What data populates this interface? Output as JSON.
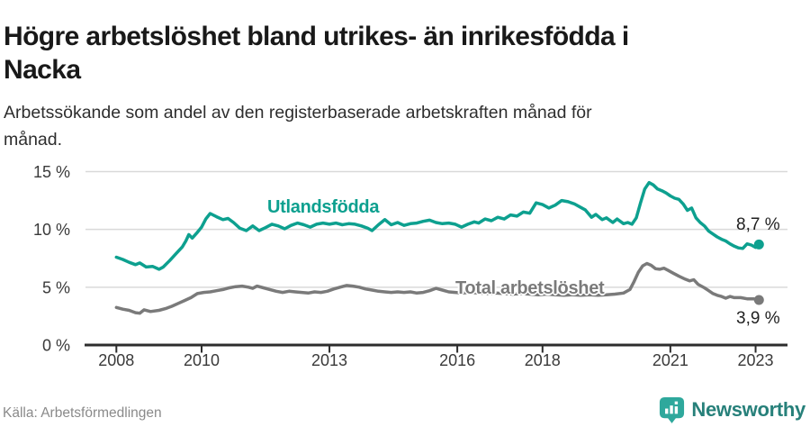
{
  "header": {
    "title": "Högre arbetslöshet bland utrikes- än inrikesfödda i Nacka",
    "title_lines": [
      "Högre arbetslöshet bland utrikes- än inrikesfödda i",
      "Nacka"
    ],
    "subtitle": "Arbetssökande som andel av den registerbaserade arbetskraften månad för månad.",
    "subtitle_lines": [
      "Arbetssökande som andel av den registerbaserade arbetskraften månad för",
      "månad."
    ]
  },
  "chart_data": {
    "type": "line",
    "title": "Högre arbetslöshet bland utrikes- än inrikesfödda i Nacka",
    "subtitle": "Arbetssökande som andel av den registerbaserade arbetskraften månad för månad.",
    "xlabel": "",
    "ylabel": "",
    "ylim": [
      0,
      15.5
    ],
    "xlim": [
      2007.55,
      2023.8
    ],
    "grid": "horizontal",
    "y_ticks": [
      {
        "label": "0 %",
        "value": 0
      },
      {
        "label": "5 %",
        "value": 5
      },
      {
        "label": "10 %",
        "value": 10
      },
      {
        "label": "15 %",
        "value": 15
      }
    ],
    "x_ticks": [
      {
        "label": "2008",
        "year": 2008
      },
      {
        "label": "2010",
        "year": 2010
      },
      {
        "label": "2013",
        "year": 2013
      },
      {
        "label": "2016",
        "year": 2016
      },
      {
        "label": "2018",
        "year": 2018
      },
      {
        "label": "2021",
        "year": 2021
      },
      {
        "label": "2023",
        "year": 2023
      }
    ],
    "series": [
      {
        "name": "Utlandsfödda",
        "color": "#0da08f",
        "end_label": "8,7 %",
        "end_value": 8.7,
        "points": [
          [
            2008.0,
            7.6
          ],
          [
            2008.15,
            7.4
          ],
          [
            2008.3,
            7.15
          ],
          [
            2008.45,
            6.95
          ],
          [
            2008.55,
            7.1
          ],
          [
            2008.7,
            6.75
          ],
          [
            2008.85,
            6.8
          ],
          [
            2009.0,
            6.55
          ],
          [
            2009.1,
            6.75
          ],
          [
            2009.25,
            7.3
          ],
          [
            2009.4,
            7.9
          ],
          [
            2009.55,
            8.5
          ],
          [
            2009.63,
            9.0
          ],
          [
            2009.7,
            9.55
          ],
          [
            2009.78,
            9.25
          ],
          [
            2009.9,
            9.75
          ],
          [
            2010.0,
            10.2
          ],
          [
            2010.1,
            10.9
          ],
          [
            2010.2,
            11.38
          ],
          [
            2010.35,
            11.1
          ],
          [
            2010.5,
            10.85
          ],
          [
            2010.62,
            10.95
          ],
          [
            2010.75,
            10.6
          ],
          [
            2010.9,
            10.1
          ],
          [
            2011.05,
            9.9
          ],
          [
            2011.2,
            10.3
          ],
          [
            2011.35,
            9.9
          ],
          [
            2011.5,
            10.15
          ],
          [
            2011.65,
            10.45
          ],
          [
            2011.8,
            10.3
          ],
          [
            2011.95,
            10.05
          ],
          [
            2012.1,
            10.35
          ],
          [
            2012.25,
            10.55
          ],
          [
            2012.4,
            10.4
          ],
          [
            2012.55,
            10.2
          ],
          [
            2012.7,
            10.45
          ],
          [
            2012.85,
            10.55
          ],
          [
            2013.0,
            10.45
          ],
          [
            2013.15,
            10.55
          ],
          [
            2013.3,
            10.4
          ],
          [
            2013.45,
            10.5
          ],
          [
            2013.6,
            10.45
          ],
          [
            2013.75,
            10.3
          ],
          [
            2013.9,
            10.1
          ],
          [
            2014.0,
            9.9
          ],
          [
            2014.15,
            10.4
          ],
          [
            2014.3,
            10.85
          ],
          [
            2014.45,
            10.4
          ],
          [
            2014.6,
            10.6
          ],
          [
            2014.75,
            10.35
          ],
          [
            2014.9,
            10.5
          ],
          [
            2015.05,
            10.55
          ],
          [
            2015.2,
            10.7
          ],
          [
            2015.35,
            10.8
          ],
          [
            2015.5,
            10.6
          ],
          [
            2015.65,
            10.5
          ],
          [
            2015.8,
            10.55
          ],
          [
            2015.95,
            10.45
          ],
          [
            2016.1,
            10.2
          ],
          [
            2016.25,
            10.45
          ],
          [
            2016.4,
            10.65
          ],
          [
            2016.5,
            10.55
          ],
          [
            2016.65,
            10.9
          ],
          [
            2016.8,
            10.75
          ],
          [
            2016.95,
            11.05
          ],
          [
            2017.1,
            10.9
          ],
          [
            2017.25,
            11.25
          ],
          [
            2017.4,
            11.15
          ],
          [
            2017.55,
            11.5
          ],
          [
            2017.7,
            11.4
          ],
          [
            2017.85,
            12.3
          ],
          [
            2018.0,
            12.15
          ],
          [
            2018.15,
            11.85
          ],
          [
            2018.3,
            12.1
          ],
          [
            2018.45,
            12.5
          ],
          [
            2018.6,
            12.4
          ],
          [
            2018.75,
            12.2
          ],
          [
            2018.9,
            11.9
          ],
          [
            2019.0,
            11.7
          ],
          [
            2019.15,
            11.05
          ],
          [
            2019.25,
            11.3
          ],
          [
            2019.4,
            10.85
          ],
          [
            2019.5,
            11.0
          ],
          [
            2019.65,
            10.6
          ],
          [
            2019.75,
            10.9
          ],
          [
            2019.9,
            10.5
          ],
          [
            2020.0,
            10.6
          ],
          [
            2020.1,
            10.45
          ],
          [
            2020.2,
            11.0
          ],
          [
            2020.3,
            12.3
          ],
          [
            2020.4,
            13.5
          ],
          [
            2020.5,
            14.05
          ],
          [
            2020.6,
            13.85
          ],
          [
            2020.7,
            13.5
          ],
          [
            2020.8,
            13.35
          ],
          [
            2020.9,
            13.15
          ],
          [
            2021.0,
            12.9
          ],
          [
            2021.1,
            12.7
          ],
          [
            2021.2,
            12.6
          ],
          [
            2021.3,
            12.2
          ],
          [
            2021.4,
            11.65
          ],
          [
            2021.5,
            11.85
          ],
          [
            2021.6,
            11.0
          ],
          [
            2021.7,
            10.6
          ],
          [
            2021.8,
            10.3
          ],
          [
            2021.9,
            9.85
          ],
          [
            2022.0,
            9.6
          ],
          [
            2022.1,
            9.35
          ],
          [
            2022.2,
            9.15
          ],
          [
            2022.3,
            9.0
          ],
          [
            2022.4,
            8.75
          ],
          [
            2022.5,
            8.55
          ],
          [
            2022.6,
            8.4
          ],
          [
            2022.7,
            8.35
          ],
          [
            2022.8,
            8.75
          ],
          [
            2022.9,
            8.65
          ],
          [
            2023.0,
            8.45
          ],
          [
            2023.08,
            8.7
          ]
        ]
      },
      {
        "name": "Total arbetslöshet",
        "color": "#7a7a7a",
        "end_label": "3,9 %",
        "end_value": 3.9,
        "points": [
          [
            2008.0,
            3.25
          ],
          [
            2008.15,
            3.1
          ],
          [
            2008.3,
            3.0
          ],
          [
            2008.45,
            2.8
          ],
          [
            2008.55,
            2.75
          ],
          [
            2008.65,
            3.05
          ],
          [
            2008.8,
            2.9
          ],
          [
            2009.0,
            3.0
          ],
          [
            2009.15,
            3.15
          ],
          [
            2009.3,
            3.35
          ],
          [
            2009.45,
            3.6
          ],
          [
            2009.6,
            3.85
          ],
          [
            2009.75,
            4.1
          ],
          [
            2009.9,
            4.45
          ],
          [
            2010.05,
            4.55
          ],
          [
            2010.2,
            4.6
          ],
          [
            2010.35,
            4.7
          ],
          [
            2010.5,
            4.8
          ],
          [
            2010.65,
            4.95
          ],
          [
            2010.8,
            5.05
          ],
          [
            2010.95,
            5.1
          ],
          [
            2011.1,
            5.0
          ],
          [
            2011.2,
            4.9
          ],
          [
            2011.3,
            5.1
          ],
          [
            2011.45,
            4.95
          ],
          [
            2011.6,
            4.8
          ],
          [
            2011.75,
            4.65
          ],
          [
            2011.9,
            4.55
          ],
          [
            2012.05,
            4.65
          ],
          [
            2012.2,
            4.6
          ],
          [
            2012.35,
            4.55
          ],
          [
            2012.5,
            4.5
          ],
          [
            2012.65,
            4.6
          ],
          [
            2012.8,
            4.55
          ],
          [
            2012.95,
            4.65
          ],
          [
            2013.1,
            4.85
          ],
          [
            2013.25,
            5.0
          ],
          [
            2013.4,
            5.15
          ],
          [
            2013.55,
            5.1
          ],
          [
            2013.7,
            5.0
          ],
          [
            2013.85,
            4.85
          ],
          [
            2014.0,
            4.75
          ],
          [
            2014.15,
            4.65
          ],
          [
            2014.3,
            4.6
          ],
          [
            2014.45,
            4.55
          ],
          [
            2014.6,
            4.6
          ],
          [
            2014.75,
            4.55
          ],
          [
            2014.9,
            4.6
          ],
          [
            2015.05,
            4.5
          ],
          [
            2015.2,
            4.55
          ],
          [
            2015.35,
            4.7
          ],
          [
            2015.5,
            4.9
          ],
          [
            2015.65,
            4.75
          ],
          [
            2015.8,
            4.6
          ],
          [
            2015.95,
            4.55
          ],
          [
            2016.1,
            4.5
          ],
          [
            2016.3,
            4.55
          ],
          [
            2016.5,
            4.5
          ],
          [
            2016.7,
            4.45
          ],
          [
            2016.9,
            4.5
          ],
          [
            2017.1,
            4.45
          ],
          [
            2017.3,
            4.4
          ],
          [
            2017.5,
            4.45
          ],
          [
            2017.7,
            4.4
          ],
          [
            2017.9,
            4.35
          ],
          [
            2018.1,
            4.4
          ],
          [
            2018.3,
            4.35
          ],
          [
            2018.5,
            4.3
          ],
          [
            2018.7,
            4.35
          ],
          [
            2018.9,
            4.3
          ],
          [
            2019.1,
            4.35
          ],
          [
            2019.3,
            4.3
          ],
          [
            2019.5,
            4.35
          ],
          [
            2019.7,
            4.4
          ],
          [
            2019.9,
            4.5
          ],
          [
            2020.05,
            4.8
          ],
          [
            2020.15,
            5.5
          ],
          [
            2020.25,
            6.3
          ],
          [
            2020.35,
            6.85
          ],
          [
            2020.45,
            7.05
          ],
          [
            2020.55,
            6.9
          ],
          [
            2020.65,
            6.6
          ],
          [
            2020.75,
            6.55
          ],
          [
            2020.85,
            6.65
          ],
          [
            2020.95,
            6.45
          ],
          [
            2021.05,
            6.25
          ],
          [
            2021.2,
            5.95
          ],
          [
            2021.35,
            5.7
          ],
          [
            2021.45,
            5.55
          ],
          [
            2021.55,
            5.65
          ],
          [
            2021.65,
            5.25
          ],
          [
            2021.8,
            4.95
          ],
          [
            2021.9,
            4.7
          ],
          [
            2022.0,
            4.45
          ],
          [
            2022.1,
            4.3
          ],
          [
            2022.2,
            4.2
          ],
          [
            2022.3,
            4.05
          ],
          [
            2022.4,
            4.2
          ],
          [
            2022.5,
            4.1
          ],
          [
            2022.65,
            4.1
          ],
          [
            2022.8,
            4.0
          ],
          [
            2022.95,
            4.0
          ],
          [
            2023.08,
            3.9
          ]
        ]
      }
    ]
  },
  "footer": {
    "source": "Källa: Arbetsförmedlingen",
    "brand": "Newsworthy"
  },
  "colors": {
    "accent_teal": "#0da08f",
    "series_gray": "#7a7a7a",
    "axis_line": "#2d2d2d",
    "gridline": "#d9d9d9",
    "title_text": "#191919",
    "source_text": "#8a8a8a",
    "brand_teal": "#27807a",
    "logo_fill": "#2ea89c"
  }
}
